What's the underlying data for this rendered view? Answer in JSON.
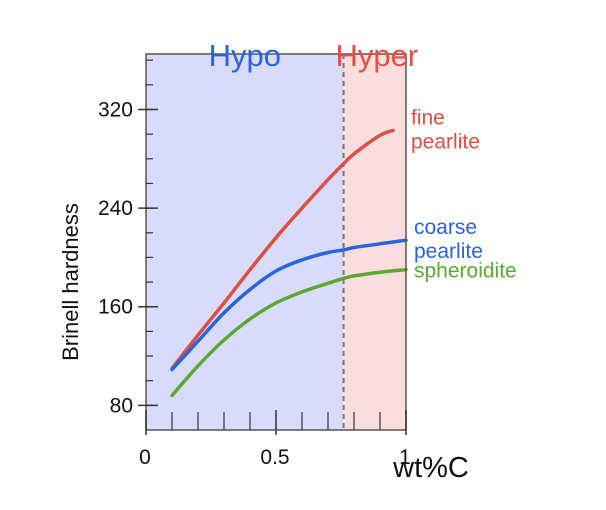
{
  "chart_data": {
    "type": "line",
    "title": "",
    "xlabel": "wt%C",
    "ylabel": "Brinell hardness",
    "xlim": [
      0,
      1.0
    ],
    "ylim": [
      60,
      365
    ],
    "xticks": [
      0,
      0.5,
      1
    ],
    "xtick_labels": [
      "0",
      "0.5",
      "1"
    ],
    "x_minor_step": 0.1,
    "yticks": [
      80,
      160,
      240,
      320
    ],
    "ytick_labels": [
      "80",
      "160",
      "240",
      "320"
    ],
    "y_minor_step": 20,
    "grid": false,
    "regions": [
      {
        "label": "Hypo",
        "x_range": [
          0,
          0.76
        ],
        "fill": "#d8dcfa",
        "label_color": "#2a63e0"
      },
      {
        "label": "Hyper",
        "x_range": [
          0.76,
          1.0
        ],
        "fill": "#fadede",
        "label_color": "#e05247"
      }
    ],
    "eutectoid_line": {
      "x": 0.76,
      "style": "dashed",
      "color": "#777777"
    },
    "series": [
      {
        "name": "fine pearlite",
        "label_lines": [
          "fine",
          "pearlite"
        ],
        "color": "#dd4f45",
        "x": [
          0.1,
          0.2,
          0.3,
          0.4,
          0.5,
          0.6,
          0.7,
          0.76,
          0.8,
          0.9,
          0.95
        ],
        "y": [
          110,
          137,
          163,
          190,
          216,
          240,
          263,
          276,
          284,
          299,
          303
        ]
      },
      {
        "name": "coarse pearlite",
        "label_lines": [
          "coarse",
          "pearlite"
        ],
        "color": "#2a63e0",
        "x": [
          0.1,
          0.2,
          0.3,
          0.4,
          0.5,
          0.6,
          0.7,
          0.76,
          0.8,
          0.9,
          1.0
        ],
        "y": [
          109,
          132,
          155,
          174,
          189,
          198,
          204,
          206,
          208,
          211,
          214
        ]
      },
      {
        "name": "spheroidite",
        "label_lines": [
          "spheroidite"
        ],
        "color": "#5aa832",
        "x": [
          0.1,
          0.2,
          0.3,
          0.4,
          0.5,
          0.6,
          0.7,
          0.76,
          0.8,
          0.9,
          1.0
        ],
        "y": [
          88,
          112,
          133,
          150,
          163,
          172,
          179,
          183,
          185,
          188,
          190
        ]
      }
    ]
  }
}
